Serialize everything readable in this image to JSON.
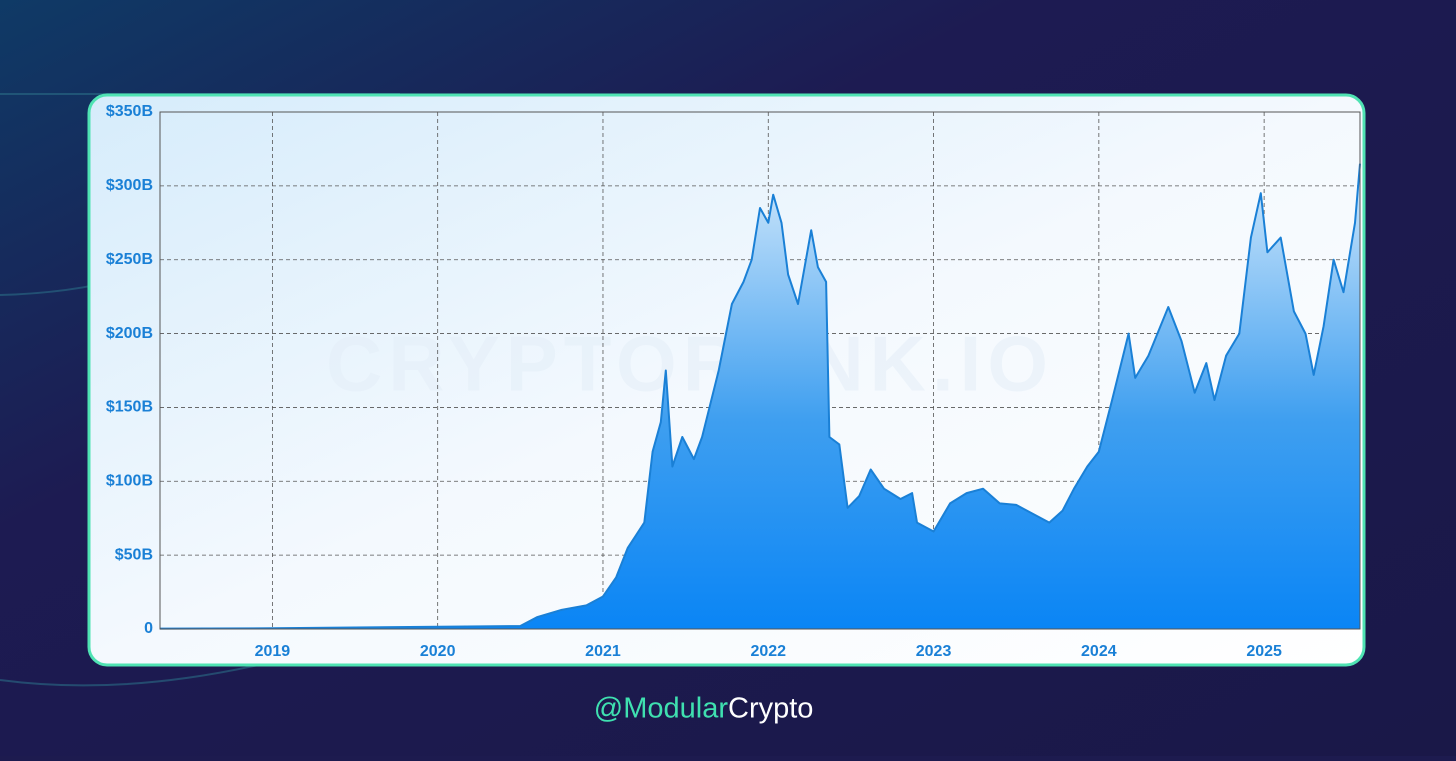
{
  "chart_data": {
    "type": "area",
    "watermark": "CRYPTORANK.IO",
    "x": [
      2018.32,
      2019.0,
      2019.5,
      2020.0,
      2020.5,
      2020.6,
      2020.75,
      2020.9,
      2021.0,
      2021.08,
      2021.15,
      2021.25,
      2021.3,
      2021.35,
      2021.38,
      2021.42,
      2021.48,
      2021.55,
      2021.6,
      2021.7,
      2021.78,
      2021.85,
      2021.9,
      2021.95,
      2022.0,
      2022.03,
      2022.08,
      2022.12,
      2022.18,
      2022.26,
      2022.3,
      2022.35,
      2022.37,
      2022.43,
      2022.48,
      2022.55,
      2022.62,
      2022.7,
      2022.8,
      2022.87,
      2022.9,
      2023.0,
      2023.1,
      2023.2,
      2023.3,
      2023.4,
      2023.5,
      2023.6,
      2023.7,
      2023.78,
      2023.85,
      2023.93,
      2024.0,
      2024.08,
      2024.18,
      2024.22,
      2024.3,
      2024.42,
      2024.5,
      2024.58,
      2024.65,
      2024.7,
      2024.77,
      2024.85,
      2024.92,
      2024.98,
      2025.02,
      2025.1,
      2025.18,
      2025.25,
      2025.3,
      2025.36,
      2025.42,
      2025.48,
      2025.52,
      2025.55,
      2025.58
    ],
    "values": [
      0.3,
      0.5,
      1,
      1.5,
      2,
      8,
      13,
      16,
      22,
      35,
      55,
      72,
      120,
      140,
      175,
      110,
      130,
      115,
      130,
      175,
      220,
      235,
      250,
      285,
      275,
      294,
      275,
      240,
      220,
      270,
      245,
      235,
      130,
      125,
      82,
      90,
      108,
      95,
      88,
      92,
      72,
      66,
      85,
      92,
      95,
      85,
      84,
      78,
      72,
      80,
      95,
      110,
      120,
      155,
      200,
      170,
      185,
      218,
      195,
      160,
      180,
      155,
      185,
      200,
      265,
      295,
      255,
      265,
      215,
      200,
      172,
      205,
      250,
      228,
      255,
      275,
      315
    ],
    "color": "#1a80d6",
    "xlim": [
      2018.32,
      2025.58
    ],
    "xticks": [
      2019,
      2020,
      2021,
      2022,
      2023,
      2024,
      2025
    ],
    "ylim": [
      0,
      350
    ],
    "yticks": [
      0,
      {
        "value": 50,
        "label": "$50B"
      },
      {
        "value": 100,
        "label": "$100B"
      },
      {
        "value": 150,
        "label": "$150B"
      },
      {
        "value": 200,
        "label": "$200B"
      },
      {
        "value": 250,
        "label": "$250B"
      },
      {
        "value": 300,
        "label": "$300B"
      },
      {
        "value": 350,
        "label": "$350B"
      }
    ],
    "grid": true
  },
  "footer": {
    "prefix": "@Modular",
    "suffix": "Crypto"
  }
}
